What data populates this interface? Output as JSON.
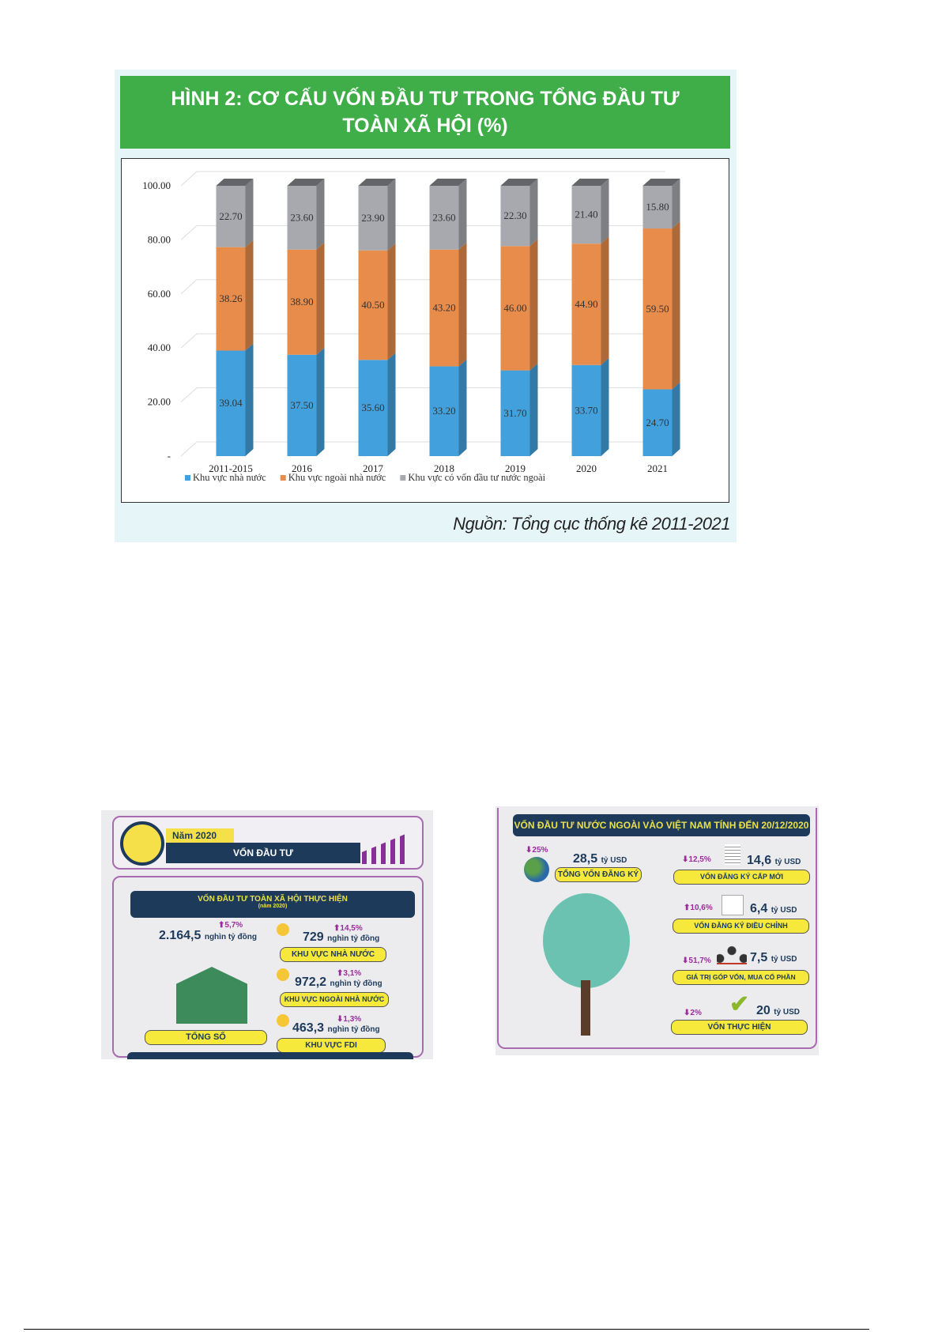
{
  "figure": {
    "title_line1": "HÌNH 2: CƠ CẤU VỐN ĐẦU TƯ TRONG TỔNG ĐẦU TƯ",
    "title_line2": "TOÀN XÃ HỘI (%)",
    "source": "Nguồn: Tổng cục thống kê 2011-2021"
  },
  "chart_data": {
    "type": "bar",
    "stacked": true,
    "style": "3d",
    "categories": [
      "2011-2015",
      "2016",
      "2017",
      "2018",
      "2019",
      "2020",
      "2021"
    ],
    "series": [
      {
        "name": "Khu vực nhà nước",
        "color": "#42a1dc",
        "values": [
          39.04,
          37.5,
          35.6,
          33.2,
          31.7,
          33.7,
          24.7
        ]
      },
      {
        "name": "Khu vực ngoài  nhà nước",
        "color": "#e88c4b",
        "values": [
          38.26,
          38.9,
          40.5,
          43.2,
          46.0,
          44.9,
          59.5
        ]
      },
      {
        "name": "Khu vực có vốn đầu tư nước ngoài",
        "color": "#a7a9ae",
        "values": [
          22.7,
          23.6,
          23.9,
          23.6,
          22.3,
          21.4,
          15.8
        ]
      }
    ],
    "yticks": [
      "-",
      "20.00",
      "40.00",
      "60.00",
      "80.00",
      "100.00"
    ],
    "ylim": [
      0,
      100
    ],
    "grid": true,
    "legend": "bottom",
    "data_labels": true
  },
  "left_info": {
    "year": "Năm 2020",
    "title": "VỐN ĐẦU TƯ",
    "section": "VỐN ĐẦU TƯ TOÀN XÃ HỘI THỰC HIỆN",
    "section_sub": "(năm 2020)",
    "total": {
      "value": "2.164,5",
      "unit": "nghìn tỷ đồng",
      "change": "⬆5,7%",
      "label": "TỔNG SỐ"
    },
    "items": [
      {
        "value": "729",
        "unit": "nghìn tỷ đồng",
        "change": "⬆14,5%",
        "label": "KHU VỰC NHÀ NƯỚC"
      },
      {
        "value": "972,2",
        "unit": "nghìn tỷ đồng",
        "change": "⬆3,1%",
        "label": "KHU VỰC NGOÀI NHÀ NƯỚC"
      },
      {
        "value": "463,3",
        "unit": "nghìn tỷ đồng",
        "change": "⬇1,3%",
        "label": "KHU VỰC FDI"
      }
    ]
  },
  "right_info": {
    "title": "VỐN ĐẦU TƯ NƯỚC NGOÀI VÀO VIỆT NAM TÍNH ĐẾN 20/12/2020",
    "total": {
      "value": "28,5",
      "unit": "tỷ USD",
      "change": "⬇25%",
      "label": "TỔNG VỐN ĐĂNG KÝ"
    },
    "items": [
      {
        "value": "14,6",
        "unit": "tỷ USD",
        "change": "⬇12,5%",
        "label": "VỐN ĐĂNG KÝ CẤP MỚI",
        "icon": "document-pen-icon"
      },
      {
        "value": "6,4",
        "unit": "tỷ USD",
        "change": "⬆10,6%",
        "label": "VỐN ĐĂNG KÝ ĐIỀU CHỈNH",
        "icon": "line-chart-icon"
      },
      {
        "value": "7,5",
        "unit": "tỷ USD",
        "change": "⬇51,7%",
        "label": "GIÁ TRỊ GÓP VỐN, MUA CỔ PHẦN",
        "icon": "people-network-icon"
      },
      {
        "value": "20",
        "unit": "tỷ USD",
        "change": "⬇2%",
        "label": "VỐN THỰC HIỆN",
        "icon": "checkmark-icon"
      }
    ]
  }
}
